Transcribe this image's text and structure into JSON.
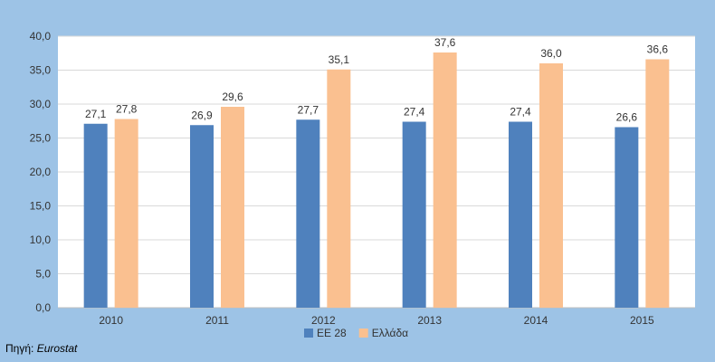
{
  "colors": {
    "frame": "#9dc3e6",
    "plot_bg": "#ffffff",
    "gridline": "#d9d9d9",
    "axis": "#bfbfbf"
  },
  "source": {
    "label": "Πηγή:",
    "value": "Eurostat"
  },
  "chart_data": {
    "type": "bar",
    "categories": [
      "2010",
      "2011",
      "2012",
      "2013",
      "2014",
      "2015"
    ],
    "series": [
      {
        "name": "ΕΕ 28",
        "color": "#4f81bd",
        "values": [
          27.1,
          26.9,
          27.7,
          27.4,
          27.4,
          26.6
        ],
        "labels": [
          "27,1",
          "26,9",
          "27,7",
          "27,4",
          "27,4",
          "26,6"
        ]
      },
      {
        "name": "Ελλάδα",
        "color": "#fac090",
        "values": [
          27.8,
          29.6,
          35.1,
          37.6,
          36.0,
          36.6
        ],
        "labels": [
          "27,8",
          "29,6",
          "35,1",
          "37,6",
          "36,0",
          "36,6"
        ]
      }
    ],
    "ylim": [
      0,
      40
    ],
    "yticks": [
      0,
      5,
      10,
      15,
      20,
      25,
      30,
      35,
      40
    ],
    "ytick_labels": [
      "0,0",
      "5,0",
      "10,0",
      "15,0",
      "20,0",
      "25,0",
      "30,0",
      "35,0",
      "40,0"
    ],
    "grid": true,
    "legend_position": "bottom"
  }
}
